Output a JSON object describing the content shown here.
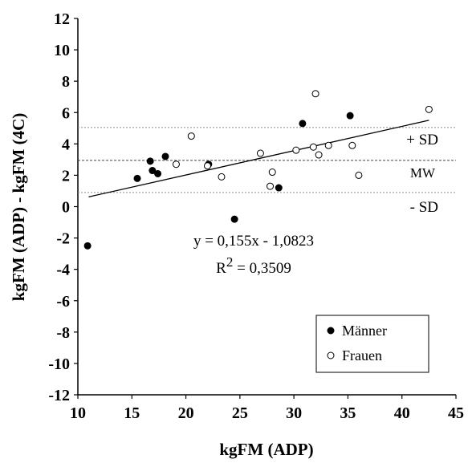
{
  "chart_data": {
    "type": "scatter",
    "title": "",
    "xlabel": "kgFM (ADP)",
    "ylabel": "kgFM (ADP) - kgFM (4C)",
    "xlim": [
      10,
      45
    ],
    "ylim": [
      -12,
      12
    ],
    "x_ticks": [
      "10",
      "15",
      "20",
      "25",
      "30",
      "35",
      "40",
      "45"
    ],
    "y_ticks": [
      "12",
      "10",
      "8",
      "6",
      "4",
      "2",
      "0",
      "-2",
      "-4",
      "-6",
      "-8",
      "-10",
      "-12"
    ],
    "grid": false,
    "legend_position": "bottom-right",
    "series": [
      {
        "name": "Männer",
        "marker": "filled-circle",
        "color": "#000000",
        "points": [
          [
            10.9,
            -2.5
          ],
          [
            15.5,
            1.8
          ],
          [
            16.7,
            2.9
          ],
          [
            16.9,
            2.3
          ],
          [
            17.4,
            2.1
          ],
          [
            18.1,
            3.2
          ],
          [
            22.1,
            2.7
          ],
          [
            24.5,
            -0.8
          ],
          [
            28.6,
            1.2
          ],
          [
            30.8,
            5.3
          ],
          [
            35.2,
            5.8
          ]
        ]
      },
      {
        "name": "Frauen",
        "marker": "open-circle",
        "color": "#000000",
        "points": [
          [
            19.1,
            2.7
          ],
          [
            20.5,
            4.5
          ],
          [
            22.0,
            2.6
          ],
          [
            23.3,
            1.9
          ],
          [
            26.9,
            3.4
          ],
          [
            27.8,
            1.3
          ],
          [
            28.0,
            2.2
          ],
          [
            30.2,
            3.6
          ],
          [
            31.8,
            3.8
          ],
          [
            32.0,
            7.2
          ],
          [
            32.3,
            3.3
          ],
          [
            33.2,
            3.9
          ],
          [
            35.4,
            3.9
          ],
          [
            36.0,
            2.0
          ],
          [
            42.5,
            6.2
          ]
        ]
      }
    ],
    "regression": {
      "equation": "y = 0,155x - 1,0823",
      "r2_prefix": "R",
      "r2_sup": "2",
      "r2_value": " = 0,3509",
      "slope": 0.155,
      "intercept": -1.0823,
      "x_range": [
        11,
        42.5
      ]
    },
    "reference_lines": [
      {
        "label": "+ SD",
        "y": 5.05,
        "style": "dotted",
        "color": "#8a8a8a"
      },
      {
        "label": "MW",
        "y": 2.95,
        "style": "dashed",
        "color": "#444444"
      },
      {
        "label": "- SD",
        "y": 0.9,
        "style": "dotted",
        "color": "#8a8a8a"
      }
    ]
  }
}
